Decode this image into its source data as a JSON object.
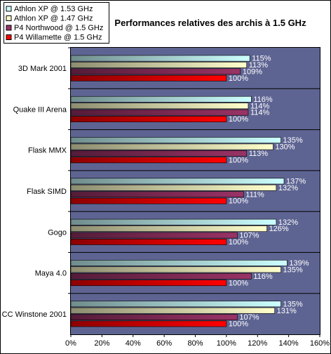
{
  "chart_data": {
    "type": "bar",
    "orientation": "horizontal",
    "title": "Performances relatives des archis à 1.5 GHz",
    "categories": [
      "3D Mark 2001",
      "Quake III Arena",
      "Flask MMX",
      "Flask SIMD",
      "Gogo",
      "Maya 4.0",
      "CC Winstone 2001"
    ],
    "series": [
      {
        "name": "Athlon XP @ 1.53 GHz",
        "color": "#ccffff",
        "values": [
          115,
          116,
          135,
          137,
          132,
          139,
          135
        ]
      },
      {
        "name": "Athlon XP @ 1.47 GHz",
        "color": "#ffffcc",
        "values": [
          113,
          114,
          130,
          132,
          126,
          135,
          131
        ]
      },
      {
        "name": "P4 Northwood @ 1.5 GHz",
        "color": "#993366",
        "values": [
          109,
          114,
          113,
          111,
          107,
          116,
          107
        ]
      },
      {
        "name": "P4 Willamette @ 1.5 GHz",
        "color": "#ff0000",
        "values": [
          100,
          100,
          100,
          100,
          100,
          100,
          100
        ]
      }
    ],
    "value_suffix": "%",
    "xlim": [
      0,
      160
    ],
    "xticks": [
      0,
      20,
      40,
      60,
      80,
      100,
      120,
      140,
      160
    ],
    "xtick_labels": [
      "0%",
      "20%",
      "40%",
      "60%",
      "80%",
      "100%",
      "120%",
      "140%",
      "160%"
    ],
    "xlabel": "",
    "ylabel": "",
    "legend_position": "top-left",
    "plot_background": "#5e6492",
    "grid": false
  }
}
